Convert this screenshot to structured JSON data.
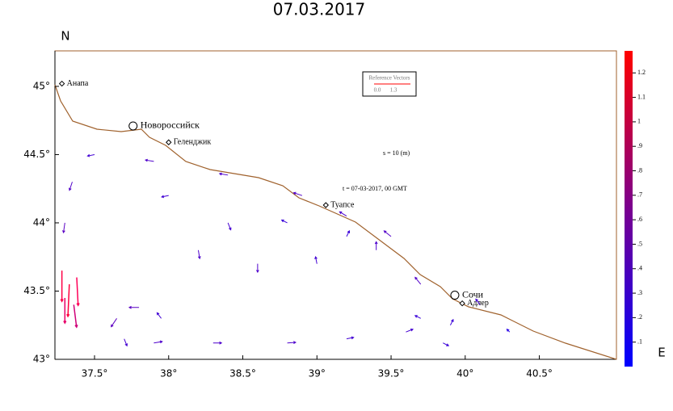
{
  "chart_data": {
    "type": "quiver",
    "title": "07.03.2017",
    "y_label": "N",
    "x_label": "E",
    "xlim": [
      37.233,
      41.02
    ],
    "ylim": [
      43.0,
      45.26
    ],
    "xticks": [
      {
        "value": 37.5,
        "label": "37.5°"
      },
      {
        "value": 38,
        "label": "38°"
      },
      {
        "value": 38.5,
        "label": "38.5°"
      },
      {
        "value": 39,
        "label": "39°"
      },
      {
        "value": 39.5,
        "label": "39.5°"
      },
      {
        "value": 40,
        "label": "40°"
      },
      {
        "value": 40.5,
        "label": "40.5°"
      }
    ],
    "yticks": [
      {
        "value": 43,
        "label": "43°"
      },
      {
        "value": 43.5,
        "label": "43.5°"
      },
      {
        "value": 44,
        "label": "44°"
      },
      {
        "value": 44.5,
        "label": "44.5°"
      },
      {
        "value": 45,
        "label": "45°"
      }
    ],
    "colorbar": {
      "lim": [
        0,
        1.29
      ],
      "ticks": [
        {
          "value": 0.1,
          "label": ".1"
        },
        {
          "value": 0.2,
          "label": ".2"
        },
        {
          "value": 0.3,
          "label": ".3"
        },
        {
          "value": 0.4,
          "label": ".4"
        },
        {
          "value": 0.5,
          "label": ".5"
        },
        {
          "value": 0.6,
          "label": ".6"
        },
        {
          "value": 0.7,
          "label": ".7"
        },
        {
          "value": 0.8,
          "label": ".8"
        },
        {
          "value": 0.9,
          "label": ".9"
        },
        1,
        1.1,
        1.2
      ]
    },
    "reference": {
      "title": "Reference Vectors",
      "min": {
        "value": 0,
        "label": "0.0"
      },
      "max": 1.3
    },
    "annotations": [
      "s = 10 (m)",
      "t = 07-03-2017, 00 GMT"
    ],
    "cities": [
      {
        "name": "Анапа",
        "lon": 37.28,
        "lat": 45.02
      },
      {
        "name": "Новороссийск",
        "lon": 37.76,
        "lat": 44.71
      },
      {
        "name": "Геленджик",
        "lon": 38.0,
        "lat": 44.59
      },
      {
        "name": "Туапсе",
        "lon": 39.06,
        "lat": 44.13
      },
      {
        "name": "Сочи",
        "lon": 39.93,
        "lat": 43.47
      },
      {
        "name": "Адлер",
        "lon": 39.98,
        "lat": 43.41
      }
    ],
    "vectors": [
      [
        37.28,
        43.65,
        0,
        -1.1
      ],
      [
        37.33,
        43.55,
        -0.05,
        -1.15
      ],
      [
        37.38,
        43.6,
        0.05,
        -1.0
      ],
      [
        37.3,
        43.45,
        0,
        -0.9
      ],
      [
        37.36,
        43.4,
        0.1,
        -0.8
      ],
      [
        37.65,
        43.3,
        -0.2,
        -0.3
      ],
      [
        37.8,
        43.38,
        -0.35,
        0
      ],
      [
        37.95,
        43.3,
        -0.15,
        0.2
      ],
      [
        37.9,
        43.12,
        0.3,
        0.05
      ],
      [
        37.7,
        43.15,
        0.1,
        -0.25
      ],
      [
        38.3,
        43.12,
        0.3,
        0
      ],
      [
        38.8,
        43.12,
        0.3,
        0.02
      ],
      [
        39.2,
        43.15,
        0.25,
        0.05
      ],
      [
        39.6,
        43.2,
        0.25,
        0.1
      ],
      [
        39.7,
        43.3,
        -0.2,
        0.1
      ],
      [
        39.9,
        43.25,
        0.1,
        0.2
      ],
      [
        39.85,
        43.12,
        0.2,
        -0.1
      ],
      [
        38.2,
        43.8,
        0.05,
        -0.3
      ],
      [
        38.6,
        43.7,
        0,
        -0.3
      ],
      [
        39.0,
        43.7,
        -0.05,
        0.25
      ],
      [
        39.4,
        43.8,
        0,
        0.3
      ],
      [
        38.4,
        44.0,
        0.1,
        -0.25
      ],
      [
        38.8,
        44.0,
        -0.2,
        0.1
      ],
      [
        39.2,
        43.9,
        0.1,
        0.2
      ],
      [
        39.5,
        43.9,
        -0.25,
        0.2
      ],
      [
        38.9,
        44.2,
        -0.3,
        0.1
      ],
      [
        38.4,
        44.35,
        -0.3,
        0.05
      ],
      [
        37.9,
        44.45,
        -0.3,
        0.05
      ],
      [
        37.5,
        44.5,
        -0.25,
        -0.05
      ],
      [
        37.35,
        44.3,
        -0.1,
        -0.3
      ],
      [
        37.3,
        44.0,
        -0.05,
        -0.35
      ],
      [
        39.2,
        44.05,
        -0.25,
        0.15
      ],
      [
        38.0,
        44.2,
        -0.25,
        -0.05
      ],
      [
        40.1,
        43.4,
        -0.15,
        0.2
      ],
      [
        39.7,
        43.55,
        -0.2,
        0.25
      ],
      [
        40.3,
        43.2,
        -0.1,
        0.1
      ]
    ]
  }
}
